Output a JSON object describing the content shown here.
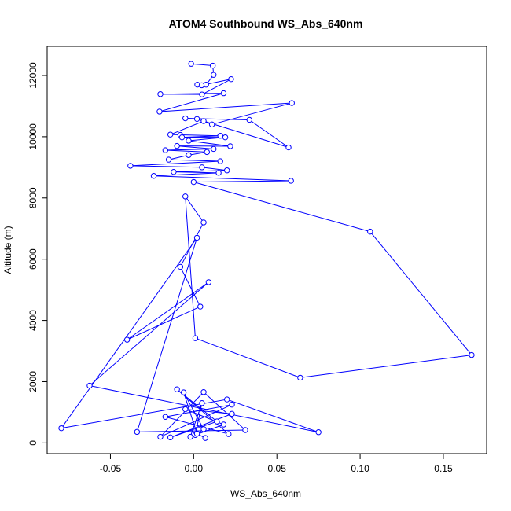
{
  "chart_data": {
    "type": "line",
    "title": "ATOM4 Southbound WS_Abs_640nm",
    "xlabel": "WS_Abs_640nm",
    "ylabel": "Altitude (m)",
    "xlim": [
      -0.088,
      0.176
    ],
    "ylim": [
      -350,
      12950
    ],
    "x_ticks": [
      -0.05,
      0.0,
      0.05,
      0.1,
      0.15
    ],
    "x_tick_labels": [
      "-0.05",
      "0.00",
      "0.05",
      "0.10",
      "0.15"
    ],
    "y_ticks": [
      0,
      2000,
      4000,
      6000,
      8000,
      10000,
      12000
    ],
    "y_tick_labels": [
      "0",
      "2000",
      "4000",
      "6000",
      "8000",
      "10000",
      "12000"
    ],
    "grid": false,
    "series": [
      {
        "color": "#0000ff",
        "marker": "open-circle",
        "points": [
          {
            "x": -0.0015,
            "y": 12380
          },
          {
            "x": 0.0115,
            "y": 12320
          },
          {
            "x": 0.012,
            "y": 12020
          },
          {
            "x": 0.0075,
            "y": 11700
          },
          {
            "x": 0.0022,
            "y": 11700
          },
          {
            "x": 0.0048,
            "y": 11680
          },
          {
            "x": 0.0225,
            "y": 11880
          },
          {
            "x": 0.005,
            "y": 11380
          },
          {
            "x": -0.02,
            "y": 11390
          },
          {
            "x": 0.018,
            "y": 11420
          },
          {
            "x": -0.0205,
            "y": 10820
          },
          {
            "x": 0.059,
            "y": 11100
          },
          {
            "x": 0.011,
            "y": 10400
          },
          {
            "x": 0.002,
            "y": 10580
          },
          {
            "x": -0.005,
            "y": 10600
          },
          {
            "x": 0.0335,
            "y": 10550
          },
          {
            "x": 0.057,
            "y": 9650
          },
          {
            "x": 0.006,
            "y": 10510
          },
          {
            "x": -0.014,
            "y": 10070
          },
          {
            "x": -0.008,
            "y": 10060
          },
          {
            "x": 0.016,
            "y": 10030
          },
          {
            "x": -0.007,
            "y": 9980
          },
          {
            "x": 0.019,
            "y": 9980
          },
          {
            "x": -0.003,
            "y": 9870
          },
          {
            "x": 0.022,
            "y": 9690
          },
          {
            "x": -0.01,
            "y": 9700
          },
          {
            "x": 0.012,
            "y": 9600
          },
          {
            "x": -0.017,
            "y": 9560
          },
          {
            "x": 0.008,
            "y": 9500
          },
          {
            "x": -0.003,
            "y": 9400
          },
          {
            "x": -0.015,
            "y": 9250
          },
          {
            "x": 0.016,
            "y": 9200
          },
          {
            "x": -0.038,
            "y": 9050
          },
          {
            "x": 0.005,
            "y": 9000
          },
          {
            "x": 0.02,
            "y": 8900
          },
          {
            "x": -0.012,
            "y": 8850
          },
          {
            "x": 0.015,
            "y": 8820
          },
          {
            "x": -0.024,
            "y": 8720
          },
          {
            "x": 0.0585,
            "y": 8560
          },
          {
            "x": 0.0,
            "y": 8520
          },
          {
            "x": 0.106,
            "y": 6900
          },
          {
            "x": 0.167,
            "y": 2870
          },
          {
            "x": 0.064,
            "y": 2130
          },
          {
            "x": 0.001,
            "y": 3420
          },
          {
            "x": -0.005,
            "y": 8050
          },
          {
            "x": 0.006,
            "y": 7200
          },
          {
            "x": -0.008,
            "y": 5750
          },
          {
            "x": 0.004,
            "y": 4450
          },
          {
            "x": -0.04,
            "y": 3370
          },
          {
            "x": 0.009,
            "y": 5250
          },
          {
            "x": -0.0625,
            "y": 1870
          },
          {
            "x": 0.075,
            "y": 350
          },
          {
            "x": 0.02,
            "y": 1420
          },
          {
            "x": -0.0795,
            "y": 480
          },
          {
            "x": 0.002,
            "y": 6700
          },
          {
            "x": -0.034,
            "y": 360
          },
          {
            "x": 0.031,
            "y": 420
          },
          {
            "x": 0.006,
            "y": 1660
          },
          {
            "x": -0.02,
            "y": 200
          },
          {
            "x": 0.023,
            "y": 1250
          },
          {
            "x": -0.017,
            "y": 850
          },
          {
            "x": 0.021,
            "y": 290
          },
          {
            "x": -0.01,
            "y": 1750
          },
          {
            "x": 0.014,
            "y": 700
          },
          {
            "x": -0.014,
            "y": 180
          },
          {
            "x": 0.023,
            "y": 950
          },
          {
            "x": -0.005,
            "y": 1100
          },
          {
            "x": 0.018,
            "y": 600
          },
          {
            "x": -0.002,
            "y": 200
          },
          {
            "x": 0.005,
            "y": 1300
          },
          {
            "x": 0.001,
            "y": 260
          },
          {
            "x": 0.006,
            "y": 450
          },
          {
            "x": -0.006,
            "y": 1650
          },
          {
            "x": 0.002,
            "y": 300
          },
          {
            "x": 0.007,
            "y": 160
          }
        ]
      }
    ]
  }
}
